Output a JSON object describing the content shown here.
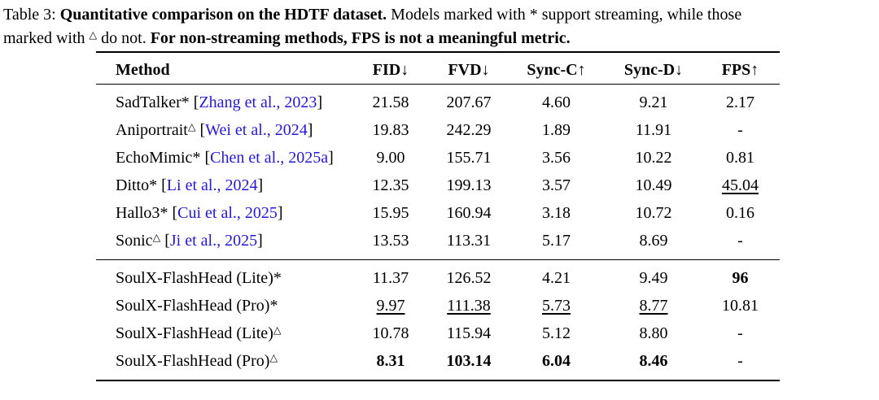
{
  "caption": {
    "line1": {
      "label": "Table 3:",
      "title_bold": "Quantitative comparison on the HDTF dataset.",
      "after_title": "Models marked with",
      "star": "*",
      "tail": "support streaming, while those"
    },
    "line2": {
      "lead": "marked with",
      "triangle": "△",
      "after_triangle": "do not.",
      "note_bold": "For non-streaming methods, FPS is not a meaningful metric."
    }
  },
  "colors": {
    "citation_link": "#2318e0",
    "text": "#000000",
    "rule": "#000000"
  },
  "table": {
    "citation_brackets": [
      "[",
      "]"
    ],
    "headers": [
      "Method",
      "FID↓",
      "FVD↓",
      "Sync-C↑",
      "Sync-D↓",
      "FPS↑"
    ],
    "groups": [
      {
        "name": "baselines",
        "rows": [
          {
            "method": "SadTalker",
            "marker": "*",
            "cite": "Zhang et al., 2023",
            "cells": [
              {
                "t": "21.58"
              },
              {
                "t": "207.67"
              },
              {
                "t": "4.60"
              },
              {
                "t": "9.21"
              },
              {
                "t": "2.17"
              }
            ]
          },
          {
            "method": "Aniportrait",
            "marker": "△",
            "cite": "Wei et al., 2024",
            "cells": [
              {
                "t": "19.83"
              },
              {
                "t": "242.29"
              },
              {
                "t": "1.89"
              },
              {
                "t": "11.91"
              },
              {
                "t": "-"
              }
            ]
          },
          {
            "method": "EchoMimic",
            "marker": "*",
            "cite": "Chen et al., 2025a",
            "cells": [
              {
                "t": "9.00"
              },
              {
                "t": "155.71"
              },
              {
                "t": "3.56"
              },
              {
                "t": "10.22"
              },
              {
                "t": "0.81"
              }
            ]
          },
          {
            "method": "Ditto",
            "marker": "*",
            "cite": "Li et al., 2024",
            "cells": [
              {
                "t": "12.35"
              },
              {
                "t": "199.13"
              },
              {
                "t": "3.57"
              },
              {
                "t": "10.49"
              },
              {
                "t": "45.04",
                "s": "u"
              }
            ]
          },
          {
            "method": "Hallo3",
            "marker": "*",
            "cite": "Cui et al., 2025",
            "cells": [
              {
                "t": "15.95"
              },
              {
                "t": "160.94"
              },
              {
                "t": "3.18"
              },
              {
                "t": "10.72"
              },
              {
                "t": "0.16"
              }
            ]
          },
          {
            "method": "Sonic",
            "marker": "△",
            "cite": "Ji et al., 2025",
            "cells": [
              {
                "t": "13.53"
              },
              {
                "t": "113.31"
              },
              {
                "t": "5.17"
              },
              {
                "t": "8.69"
              },
              {
                "t": "-"
              }
            ]
          }
        ]
      },
      {
        "name": "ours",
        "rows": [
          {
            "method": "SoulX-FlashHead (Lite)",
            "marker": "*",
            "cells": [
              {
                "t": "11.37"
              },
              {
                "t": "126.52"
              },
              {
                "t": "4.21"
              },
              {
                "t": "9.49"
              },
              {
                "t": "96",
                "s": "b"
              }
            ]
          },
          {
            "method": "SoulX-FlashHead (Pro)",
            "marker": "*",
            "cells": [
              {
                "t": "9.97",
                "s": "u"
              },
              {
                "t": "111.38",
                "s": "u"
              },
              {
                "t": "5.73",
                "s": "u"
              },
              {
                "t": "8.77",
                "s": "u"
              },
              {
                "t": "10.81"
              }
            ]
          },
          {
            "method": "SoulX-FlashHead (Lite)",
            "marker": "△",
            "cells": [
              {
                "t": "10.78"
              },
              {
                "t": "115.94"
              },
              {
                "t": "5.12"
              },
              {
                "t": "8.80"
              },
              {
                "t": "-"
              }
            ]
          },
          {
            "method": "SoulX-FlashHead (Pro)",
            "marker": "△",
            "cells": [
              {
                "t": "8.31",
                "s": "b"
              },
              {
                "t": "103.14",
                "s": "b"
              },
              {
                "t": "6.04",
                "s": "b"
              },
              {
                "t": "8.46",
                "s": "b"
              },
              {
                "t": "-"
              }
            ]
          }
        ]
      }
    ]
  }
}
